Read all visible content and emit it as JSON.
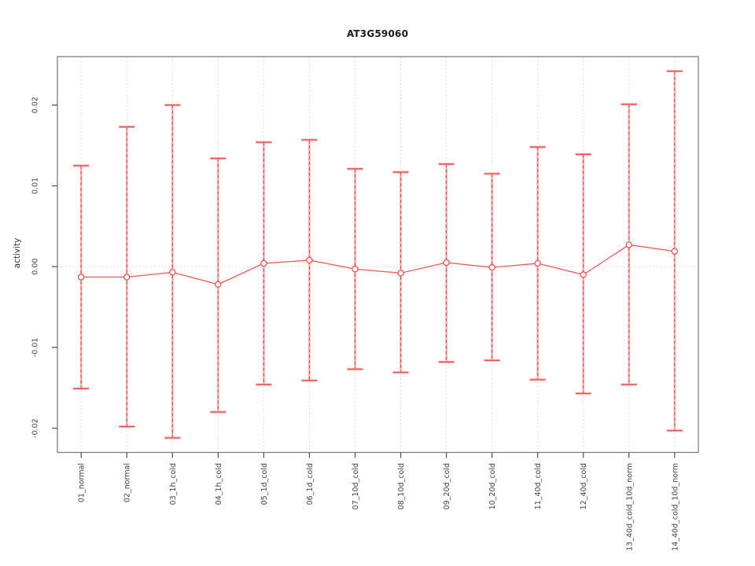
{
  "window": {
    "background": "#ffffff"
  },
  "chart_data": {
    "type": "line",
    "subtype": "points-with-error-bars",
    "title": "AT3G59060",
    "xlabel": "",
    "ylabel": "activity",
    "categories": [
      "01_normal",
      "02_normal",
      "03_1h_cold",
      "04_1h_cold",
      "05_1d_cold",
      "06_1d_cold",
      "07_10d_cold",
      "08_10d_cold",
      "09_20d_cold",
      "10_20d_cold",
      "11_40d_cold",
      "12_40d_cold",
      "13_40d_cold_10d_norm",
      "14_40d_cold_10d_norm"
    ],
    "series": [
      {
        "name": "activity",
        "values": [
          -0.0013,
          -0.0013,
          -0.0007,
          -0.0022,
          0.0004,
          0.0008,
          -0.0003,
          -0.0008,
          0.0005,
          -0.0001,
          0.0004,
          -0.001,
          0.0027,
          0.0019
        ],
        "err_hi": [
          0.0125,
          0.0173,
          0.02,
          0.0134,
          0.0154,
          0.0157,
          0.0121,
          0.0117,
          0.0127,
          0.0115,
          0.0148,
          0.0139,
          0.0201,
          0.0242
        ],
        "err_lo": [
          -0.0151,
          -0.0198,
          -0.0212,
          -0.018,
          -0.0146,
          -0.0141,
          -0.0127,
          -0.0131,
          -0.0118,
          -0.0116,
          -0.014,
          -0.0157,
          -0.0146,
          -0.0203
        ]
      }
    ],
    "yticks": {
      "values": [
        -0.02,
        -0.01,
        0,
        0.01,
        0.02
      ],
      "labels": [
        "-0.02",
        "-0.01",
        "0.00",
        "0.01",
        "0.02"
      ]
    },
    "ylim": [
      -0.023,
      0.026
    ],
    "grid": {
      "vertical_dotted_per_category": true,
      "horizontal_zero_dotted": true
    },
    "legend": "none",
    "marker": "open-circle",
    "colors": {
      "series_line": "#ef5a5a",
      "error_bar": "#e9494a",
      "error_bar_halo": "#f6a0a0",
      "grid": "#d9d9d9",
      "zero_line": "#dcdcdc",
      "plot_border": "#7f7f7f",
      "tick": "#4d4d4d",
      "tick_text": "#404040",
      "title_text": "#1a1a1a"
    }
  }
}
